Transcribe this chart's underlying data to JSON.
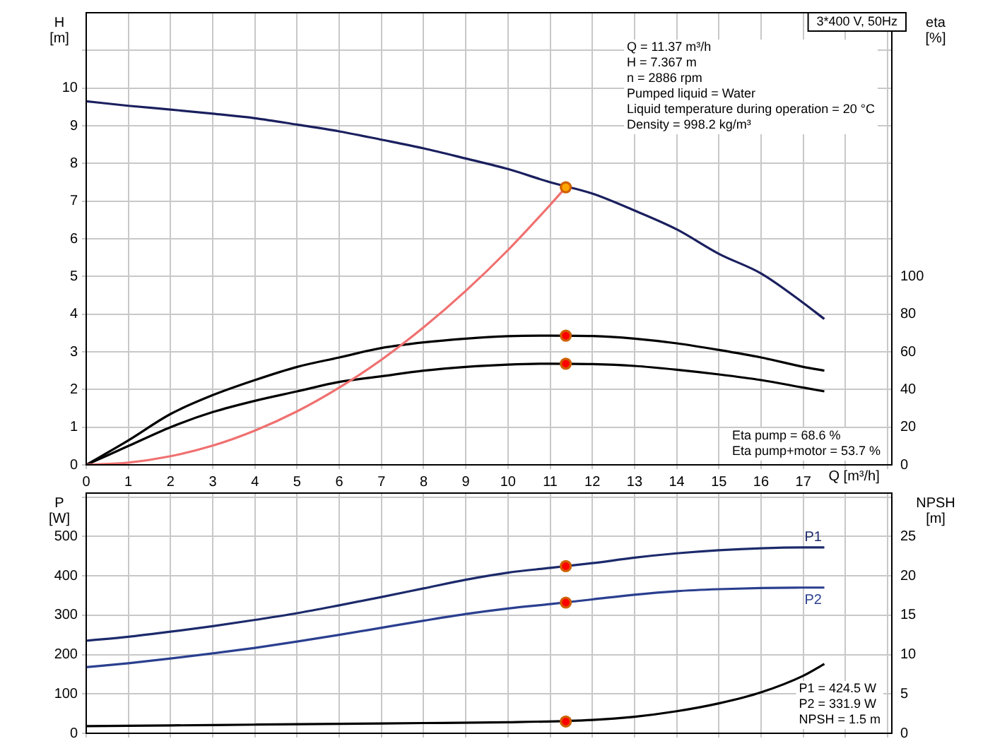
{
  "chart_data": [
    {
      "type": "line",
      "title": "3*400 V, 50Hz",
      "xlabel": "Q [m³/h]",
      "ylabel": "H\n[m]",
      "y2label": "eta\n[%]",
      "annotations": [
        "Q = 11.37 m³/h\nH = 7.367 m\nn = 2886 rpm\nPumped liquid = Water\nLiquid temperature during operation = 20 °C\nDensity = 998.2 kg/m³",
        "Eta pump = 68.6 %\nEta pump+motor = 53.7 %"
      ],
      "xlim": [
        0,
        19.1
      ],
      "xticks": [
        0,
        1,
        2,
        3,
        4,
        5,
        6,
        7,
        8,
        9,
        10,
        11,
        12,
        13,
        14,
        15,
        16,
        17,
        {
          "value": 18,
          "label": null
        },
        {
          "value": 19,
          "label": null
        }
      ],
      "ylim": [
        0,
        12
      ],
      "yticks": [
        0,
        1,
        2,
        3,
        4,
        5,
        6,
        7,
        8,
        9,
        10,
        {
          "value": 11,
          "label": null
        }
      ],
      "y2lim": [
        0,
        240
      ],
      "y2ticks": [
        0,
        20,
        40,
        60,
        80,
        100
      ],
      "grid": true,
      "series": [
        {
          "color": "#1a1f5e",
          "x": [
            0,
            1,
            2,
            3,
            4,
            5,
            6,
            7,
            8,
            9,
            10,
            11,
            12,
            13,
            14,
            15,
            16,
            17,
            17.5
          ],
          "values": [
            9.65,
            9.53,
            9.43,
            9.32,
            9.2,
            9.03,
            8.85,
            8.63,
            8.4,
            8.13,
            7.85,
            7.5,
            7.2,
            6.75,
            6.25,
            5.6,
            5.08,
            4.3,
            3.87
          ]
        },
        {
          "color": "#f07070",
          "x": [
            0,
            1,
            2,
            3,
            4,
            5,
            6,
            7,
            8,
            9,
            10,
            11,
            11.37
          ],
          "values": [
            0,
            0.06,
            0.23,
            0.51,
            0.91,
            1.42,
            2.05,
            2.79,
            3.65,
            4.62,
            5.7,
            6.9,
            7.367
          ]
        },
        {
          "color": "#000000",
          "axis": "y2",
          "x": [
            0,
            1,
            2,
            3,
            4,
            5,
            6,
            7,
            8,
            9,
            10,
            11,
            12,
            13,
            14,
            15,
            16,
            17,
            17.5
          ],
          "values": [
            0,
            13,
            27,
            37,
            45,
            52,
            57,
            62,
            65,
            67,
            68.3,
            68.6,
            68.4,
            67,
            64.5,
            61,
            57,
            52,
            50
          ]
        },
        {
          "color": "#000000",
          "axis": "y2",
          "x": [
            0,
            1,
            2,
            3,
            4,
            5,
            6,
            7,
            8,
            9,
            10,
            11,
            12,
            13,
            14,
            15,
            16,
            17,
            17.5
          ],
          "values": [
            0,
            10,
            20,
            28,
            34,
            39,
            44,
            47,
            50,
            52,
            53.2,
            53.7,
            53.5,
            52.5,
            50.5,
            48,
            45,
            41,
            39
          ]
        },
        {
          "type": "scatter",
          "marker": "circle",
          "color": "#ffa500",
          "x": [
            11.37
          ],
          "values": [
            7.367
          ]
        },
        {
          "type": "scatter",
          "marker": "circle",
          "color": "#ff0000",
          "axis": "y2",
          "x": [
            11.37,
            11.37
          ],
          "values": [
            68.6,
            53.7
          ]
        }
      ]
    },
    {
      "type": "line",
      "ylabel": "P\n[W]",
      "y2label": "NPSH\n[m]",
      "tick_labels": "y",
      "annotations": [
        "P1 = 424.5 W\nP2 = 331.9 W\nNPSH = 1.5 m"
      ],
      "xlim": [
        0,
        19.1
      ],
      "xticks": [
        {
          "value": 0,
          "label": null
        },
        {
          "value": 1,
          "label": null
        },
        {
          "value": 2,
          "label": null
        },
        {
          "value": 3,
          "label": null
        },
        {
          "value": 4,
          "label": null
        },
        {
          "value": 5,
          "label": null
        },
        {
          "value": 6,
          "label": null
        },
        {
          "value": 7,
          "label": null
        },
        {
          "value": 8,
          "label": null
        },
        {
          "value": 9,
          "label": null
        },
        {
          "value": 10,
          "label": null
        },
        {
          "value": 11,
          "label": null
        },
        {
          "value": 12,
          "label": null
        },
        {
          "value": 13,
          "label": null
        },
        {
          "value": 14,
          "label": null
        },
        {
          "value": 15,
          "label": null
        },
        {
          "value": 16,
          "label": null
        },
        {
          "value": 17,
          "label": null
        },
        {
          "value": 18,
          "label": null
        },
        {
          "value": 19,
          "label": null
        }
      ],
      "ylim": [
        0,
        610
      ],
      "yticks": [
        0,
        100,
        200,
        300,
        400,
        500,
        {
          "value": 600,
          "label": null
        }
      ],
      "y2lim": [
        0,
        30.5
      ],
      "y2ticks": [
        0,
        5,
        10,
        15,
        20,
        25
      ],
      "grid": true,
      "series": [
        {
          "name": "P1",
          "color": "#1c2a6b",
          "x": [
            0,
            1,
            2,
            3,
            4,
            5,
            6,
            7,
            8,
            9,
            10,
            11,
            12,
            13,
            14,
            15,
            16,
            17,
            17.5
          ],
          "values": [
            235,
            245,
            258,
            272,
            288,
            305,
            325,
            346,
            368,
            390,
            408,
            420,
            432,
            446,
            457,
            465,
            470,
            472,
            472
          ]
        },
        {
          "name": "P2",
          "color": "#2a3f8f",
          "x": [
            0,
            1,
            2,
            3,
            4,
            5,
            6,
            7,
            8,
            9,
            10,
            11,
            12,
            13,
            14,
            15,
            16,
            17,
            17.5
          ],
          "values": [
            168,
            178,
            190,
            203,
            217,
            233,
            250,
            268,
            286,
            303,
            317,
            328,
            340,
            352,
            361,
            366,
            369,
            370,
            370
          ]
        },
        {
          "color": "#000000",
          "axis": "y2",
          "x": [
            0,
            2,
            4,
            6,
            8,
            10,
            12,
            13,
            14,
            15,
            16,
            17,
            17.5
          ],
          "values": [
            0.9,
            1,
            1.1,
            1.2,
            1.3,
            1.4,
            1.7,
            2.1,
            2.8,
            3.8,
            5.2,
            7.3,
            8.8
          ]
        },
        {
          "type": "scatter",
          "marker": "circle",
          "color": "#ff0000",
          "x": [
            11.37,
            11.37
          ],
          "values": [
            424.5,
            331.9
          ]
        },
        {
          "type": "scatter",
          "marker": "circle",
          "color": "#ff0000",
          "axis": "y2",
          "x": [
            11.37
          ],
          "values": [
            1.5
          ]
        }
      ]
    }
  ]
}
